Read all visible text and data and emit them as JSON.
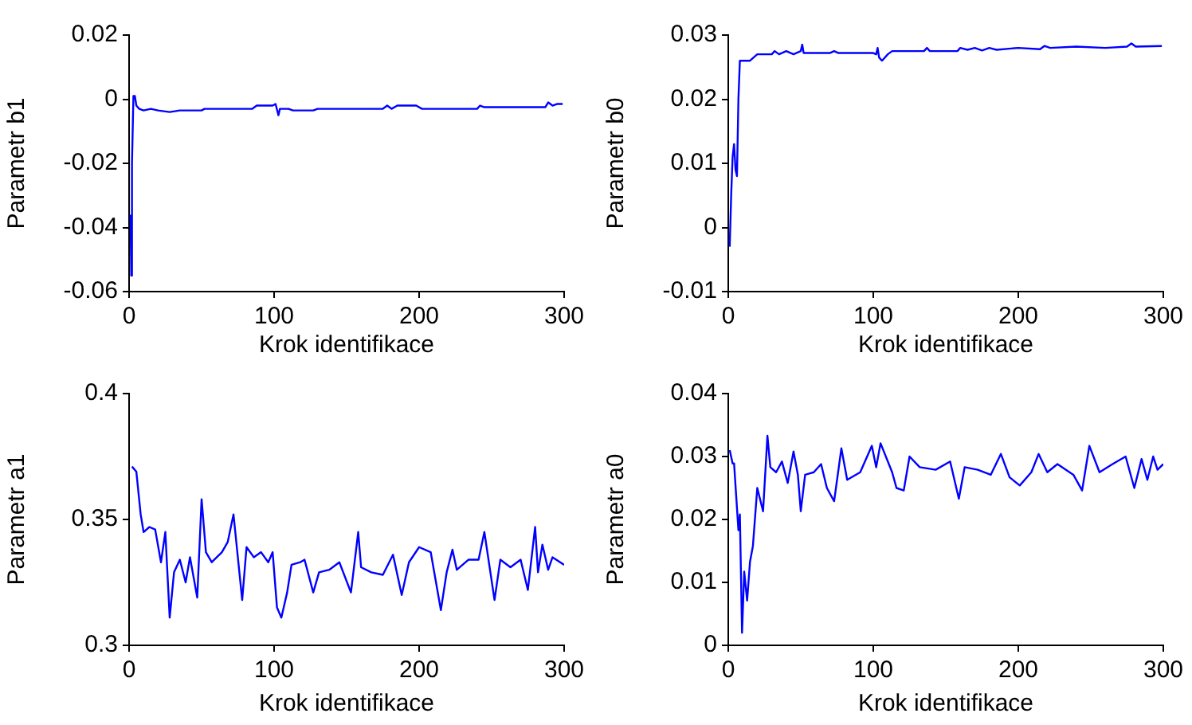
{
  "chart_data": [
    {
      "type": "line",
      "xlabel": "Krok identifikace",
      "ylabel": "Parametr b1",
      "color": "#0000ff",
      "grid": false,
      "xlim": [
        0,
        300
      ],
      "xticks": [
        0,
        100,
        200,
        300
      ],
      "ylim": [
        -0.06,
        0.02
      ],
      "yticks": [
        -0.06,
        -0.04,
        -0.02,
        0,
        0.02
      ],
      "x": [
        1,
        1.5,
        2,
        3,
        4,
        5,
        7,
        10,
        15,
        20,
        28,
        35,
        50,
        52,
        85,
        88,
        99,
        101,
        103,
        104,
        110,
        113,
        127,
        130,
        175,
        178,
        181,
        185,
        198,
        202,
        240,
        242,
        245,
        287,
        289,
        292,
        295,
        299
      ],
      "values": [
        -0.036,
        -0.055,
        -0.02,
        0.001,
        0.001,
        -0.002,
        -0.003,
        -0.0035,
        -0.003,
        -0.0035,
        -0.004,
        -0.0035,
        -0.0035,
        -0.003,
        -0.003,
        -0.002,
        -0.002,
        -0.0015,
        -0.005,
        -0.003,
        -0.003,
        -0.0035,
        -0.0035,
        -0.003,
        -0.003,
        -0.002,
        -0.003,
        -0.002,
        -0.002,
        -0.003,
        -0.003,
        -0.002,
        -0.0025,
        -0.0025,
        -0.001,
        -0.002,
        -0.0015,
        -0.0015
      ]
    },
    {
      "type": "line",
      "xlabel": "Krok identifikace",
      "ylabel": "Parametr b0",
      "color": "#0000ff",
      "grid": false,
      "xlim": [
        0,
        300
      ],
      "xticks": [
        0,
        100,
        200,
        300
      ],
      "ylim": [
        -0.01,
        0.03
      ],
      "yticks": [
        -0.01,
        0,
        0.01,
        0.02,
        0.03
      ],
      "x": [
        1,
        2,
        3,
        4,
        5,
        6,
        7,
        8,
        10,
        15,
        20,
        30,
        32,
        35,
        40,
        45,
        50,
        51,
        52,
        70,
        73,
        76,
        100,
        102,
        103,
        104,
        106,
        110,
        113,
        135,
        137,
        139,
        158,
        160,
        165,
        170,
        175,
        180,
        185,
        200,
        215,
        218,
        222,
        240,
        260,
        275,
        278,
        281,
        299
      ],
      "values": [
        -0.003,
        0.005,
        0.011,
        0.013,
        0.009,
        0.008,
        0.02,
        0.026,
        0.026,
        0.026,
        0.027,
        0.027,
        0.0275,
        0.027,
        0.0275,
        0.027,
        0.0275,
        0.0285,
        0.0272,
        0.0272,
        0.0275,
        0.0272,
        0.0272,
        0.027,
        0.028,
        0.0265,
        0.026,
        0.027,
        0.0275,
        0.0275,
        0.028,
        0.0275,
        0.0275,
        0.028,
        0.0277,
        0.028,
        0.0276,
        0.028,
        0.0277,
        0.028,
        0.0278,
        0.0283,
        0.028,
        0.0282,
        0.028,
        0.0282,
        0.0287,
        0.0282,
        0.0283
      ]
    },
    {
      "type": "line",
      "xlabel": "Krok identifikace",
      "ylabel": "Parametr a1",
      "color": "#0000ff",
      "grid": false,
      "xlim": [
        0,
        300
      ],
      "xticks": [
        0,
        100,
        200,
        300
      ],
      "ylim": [
        0.3,
        0.4
      ],
      "yticks": [
        0.3,
        0.35,
        0.4
      ],
      "x": [
        2,
        5,
        8,
        10,
        14,
        18,
        22,
        25,
        28,
        31,
        35,
        39,
        42,
        47,
        50,
        53,
        57,
        64,
        68,
        72,
        75,
        78,
        81,
        86,
        91,
        96,
        99,
        102,
        105,
        109,
        112,
        118,
        121,
        127,
        131,
        138,
        145,
        153,
        158,
        160,
        167,
        175,
        182,
        188,
        193,
        200,
        208,
        215,
        219,
        223,
        226,
        234,
        241,
        245,
        252,
        256,
        263,
        270,
        275,
        280,
        282,
        285,
        289,
        292,
        300
      ],
      "values": [
        0.371,
        0.369,
        0.352,
        0.345,
        0.347,
        0.346,
        0.333,
        0.345,
        0.311,
        0.329,
        0.334,
        0.325,
        0.335,
        0.319,
        0.358,
        0.337,
        0.333,
        0.337,
        0.341,
        0.352,
        0.335,
        0.318,
        0.339,
        0.335,
        0.337,
        0.333,
        0.337,
        0.315,
        0.311,
        0.321,
        0.332,
        0.333,
        0.334,
        0.321,
        0.329,
        0.33,
        0.333,
        0.321,
        0.345,
        0.331,
        0.329,
        0.328,
        0.336,
        0.32,
        0.333,
        0.339,
        0.337,
        0.314,
        0.329,
        0.338,
        0.33,
        0.334,
        0.334,
        0.345,
        0.318,
        0.334,
        0.331,
        0.334,
        0.322,
        0.347,
        0.329,
        0.34,
        0.33,
        0.335,
        0.332
      ]
    },
    {
      "type": "line",
      "xlabel": "Krok identifikace",
      "ylabel": "Parametr a0",
      "color": "#0000ff",
      "grid": false,
      "xlim": [
        0,
        300
      ],
      "xticks": [
        0,
        100,
        200,
        300
      ],
      "ylim": [
        0,
        0.04
      ],
      "yticks": [
        0,
        0.01,
        0.02,
        0.03,
        0.04
      ],
      "x": [
        1,
        3,
        4,
        7,
        8,
        9.5,
        11,
        13,
        15,
        17,
        20,
        24,
        27,
        29,
        33,
        37,
        41,
        45,
        48,
        50,
        53,
        59,
        64,
        68,
        73,
        78,
        82,
        91,
        99,
        102,
        105,
        113,
        116,
        121,
        125,
        132,
        143,
        153,
        159,
        163,
        172,
        181,
        188,
        194,
        201,
        209,
        214,
        220,
        227,
        238,
        244,
        249,
        256,
        265,
        274,
        280,
        285,
        289,
        293,
        296,
        300
      ],
      "values": [
        0.031,
        0.0289,
        0.0289,
        0.0183,
        0.0208,
        0.002,
        0.0117,
        0.0071,
        0.0133,
        0.0158,
        0.025,
        0.0213,
        0.0333,
        0.0283,
        0.0275,
        0.0292,
        0.0258,
        0.0308,
        0.0271,
        0.0213,
        0.0271,
        0.0275,
        0.0288,
        0.025,
        0.0229,
        0.0313,
        0.0263,
        0.0275,
        0.0317,
        0.0283,
        0.0321,
        0.0275,
        0.025,
        0.0246,
        0.03,
        0.0283,
        0.0279,
        0.0292,
        0.0233,
        0.0283,
        0.0279,
        0.0271,
        0.0304,
        0.0267,
        0.0254,
        0.0275,
        0.0304,
        0.0275,
        0.0288,
        0.0271,
        0.0246,
        0.0317,
        0.0275,
        0.0288,
        0.03,
        0.025,
        0.0296,
        0.0263,
        0.03,
        0.0279,
        0.0288
      ]
    }
  ]
}
